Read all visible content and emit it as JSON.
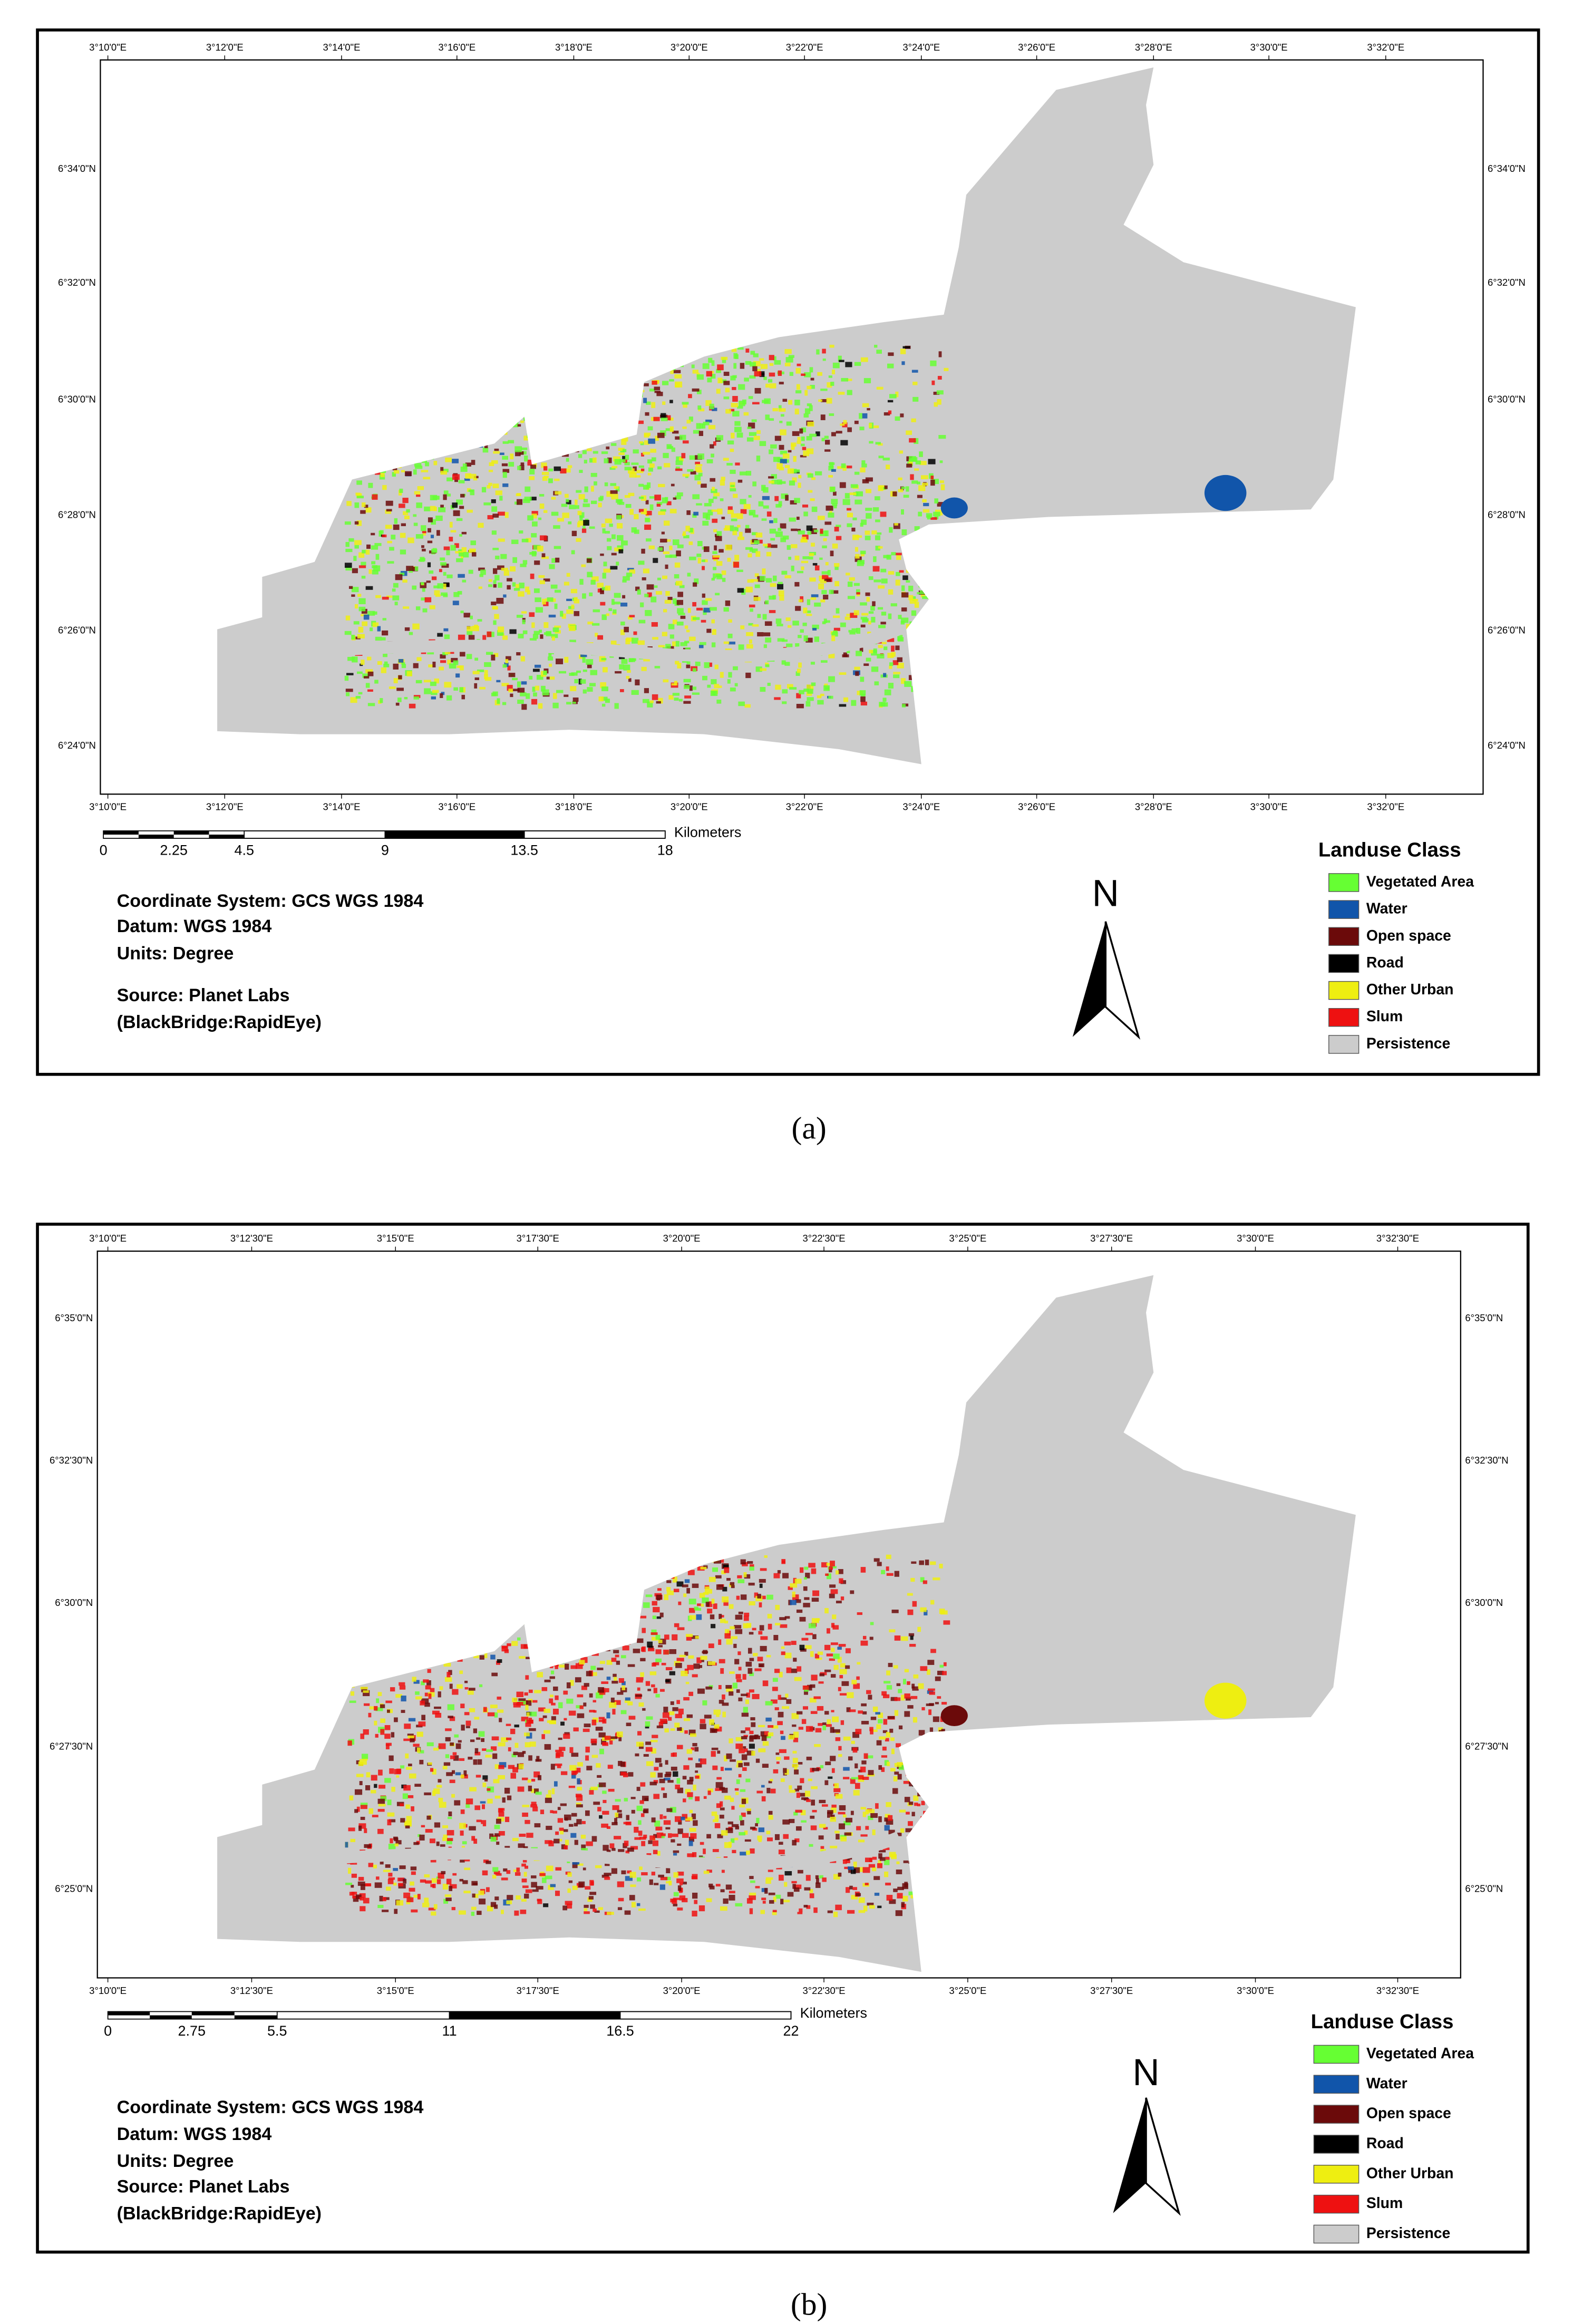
{
  "maps": [
    {
      "caption": "(a)",
      "top_labels": [
        "3°10'0\"E",
        "3°12'0\"E",
        "3°14'0\"E",
        "3°16'0\"E",
        "3°18'0\"E",
        "3°20'0\"E",
        "3°22'0\"E",
        "3°24'0\"E",
        "3°26'0\"E",
        "3°28'0\"E",
        "3°30'0\"E",
        "3°32'0\"E"
      ],
      "side_labels": [
        "6°34'0\"N",
        "6°32'0\"N",
        "6°30'0\"N",
        "6°28'0\"N",
        "6°26'0\"N",
        "6°24'0\"N"
      ],
      "scale_labels": [
        "0",
        "2.25",
        "4.5",
        "9",
        "13.5",
        "18"
      ],
      "scale_unit": "Kilometers",
      "info": [
        "Coordinate System: GCS WGS 1984",
        "Datum: WGS 1984",
        "Units: Degree",
        "Source: Planet Labs",
        "(BlackBridge:RapidEye)"
      ],
      "north": "N",
      "legend_title": "Landuse Class",
      "legend": [
        {
          "label": "Vegetated Area",
          "color": "#66ff33"
        },
        {
          "label": "Water",
          "color": "#1155aa"
        },
        {
          "label": "Open space",
          "color": "#6b0a0a"
        },
        {
          "label": "Road",
          "color": "#000000"
        },
        {
          "label": "Other Urban",
          "color": "#eeee11"
        },
        {
          "label": "Slum",
          "color": "#ee1111"
        },
        {
          "label": "Persistence",
          "color": "#cccccc"
        }
      ]
    },
    {
      "caption": "(b)",
      "top_labels": [
        "3°10'0\"E",
        "3°12'30\"E",
        "3°15'0\"E",
        "3°17'30\"E",
        "3°20'0\"E",
        "3°22'30\"E",
        "3°25'0\"E",
        "3°27'30\"E",
        "3°30'0\"E",
        "3°32'30\"E"
      ],
      "side_labels": [
        "6°35'0\"N",
        "6°32'30\"N",
        "6°30'0\"N",
        "6°27'30\"N",
        "6°25'0\"N"
      ],
      "scale_labels": [
        "0",
        "2.75",
        "5.5",
        "11",
        "16.5",
        "22"
      ],
      "scale_unit": "Kilometers",
      "info": [
        "Coordinate System: GCS WGS 1984",
        "Datum: WGS 1984",
        "Units: Degree",
        "Source: Planet Labs",
        "(BlackBridge:RapidEye)"
      ],
      "north": "N",
      "legend_title": "Landuse Class",
      "legend": [
        {
          "label": "Vegetated Area",
          "color": "#66ff33"
        },
        {
          "label": "Water",
          "color": "#1155aa"
        },
        {
          "label": "Open space",
          "color": "#6b0a0a"
        },
        {
          "label": "Road",
          "color": "#000000"
        },
        {
          "label": "Other Urban",
          "color": "#eeee11"
        },
        {
          "label": "Slum",
          "color": "#ee1111"
        },
        {
          "label": "Persistence",
          "color": "#cccccc"
        }
      ]
    }
  ]
}
